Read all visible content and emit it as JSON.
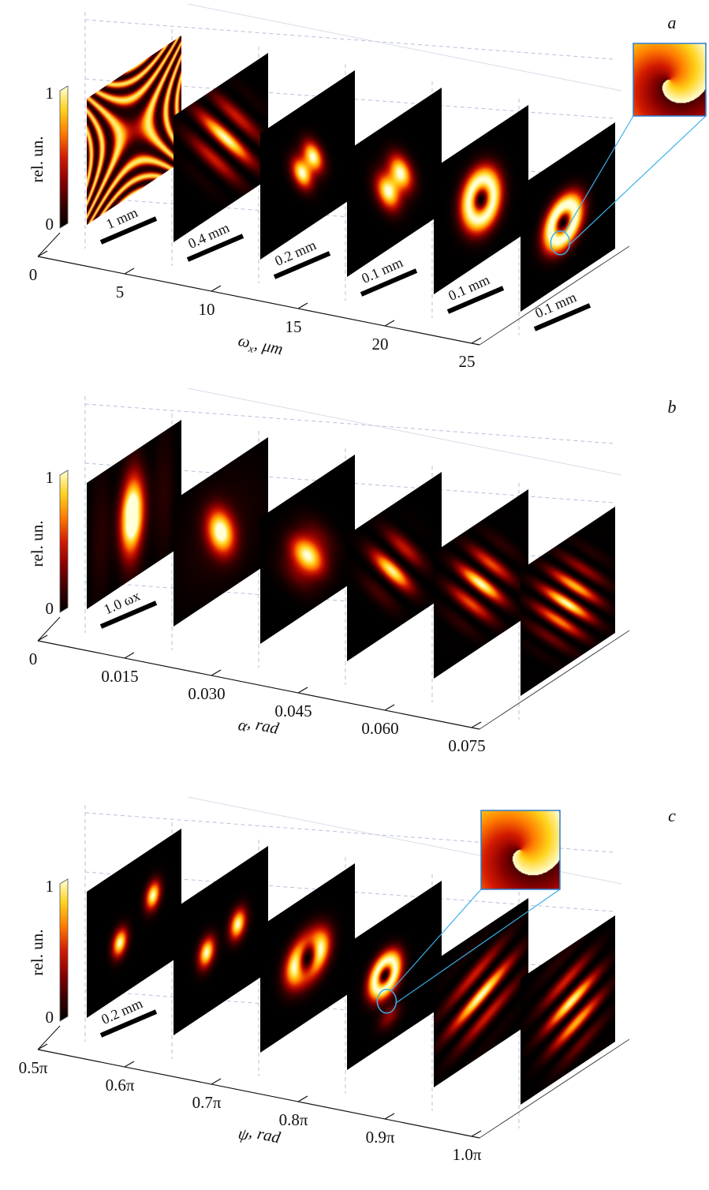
{
  "colors": {
    "colormap": [
      "#000000",
      "#3a0000",
      "#8a0000",
      "#d41a00",
      "#ff7a00",
      "#ffd21a",
      "#ffffd8"
    ],
    "scale_bar": "#000000",
    "grid": "#b8bfd8",
    "inset_frame": "#2a7fd4",
    "inset_lines": "#3ab0e8"
  },
  "panels": [
    {
      "id": "a",
      "panel_label": "a",
      "colorbar": {
        "label": "rel. un.",
        "max_label": "1",
        "min_label": "0"
      },
      "axis": {
        "label_var": "ω",
        "label_sub": "x",
        "label_unit": ", μm",
        "ticks": [
          "0",
          "5",
          "10",
          "15",
          "20",
          "25"
        ]
      },
      "slices": [
        {
          "pattern": "caustic",
          "scale_label": "1 mm"
        },
        {
          "pattern": "fringes3",
          "scale_label": "0.4 mm"
        },
        {
          "pattern": "lobes2",
          "scale_label": "0.2 mm"
        },
        {
          "pattern": "lobes2b",
          "scale_label": "0.1 mm"
        },
        {
          "pattern": "ring",
          "scale_label": "0.1 mm"
        },
        {
          "pattern": "donut",
          "scale_label": "0.1 mm"
        }
      ],
      "inset": {
        "pattern": "spiral-phase",
        "on_slice": 5
      }
    },
    {
      "id": "b",
      "panel_label": "b",
      "colorbar": {
        "label": "rel. un.",
        "max_label": "1",
        "min_label": "0"
      },
      "axis": {
        "label_var": "α",
        "label_sub": "",
        "label_unit": ", rad",
        "ticks": [
          "0",
          "0.015",
          "0.030",
          "0.045",
          "0.060",
          "0.075"
        ]
      },
      "slices": [
        {
          "pattern": "peanut",
          "scale_label": "1.0 ωx"
        },
        {
          "pattern": "spot",
          "scale_label": ""
        },
        {
          "pattern": "spot2",
          "scale_label": ""
        },
        {
          "pattern": "fringes2",
          "scale_label": ""
        },
        {
          "pattern": "fringes3b",
          "scale_label": ""
        },
        {
          "pattern": "fringes4",
          "scale_label": ""
        }
      ],
      "inset": null
    },
    {
      "id": "c",
      "panel_label": "c",
      "colorbar": {
        "label": "rel. un.",
        "max_label": "1",
        "min_label": "0"
      },
      "axis": {
        "label_var": "ψ",
        "label_sub": "",
        "label_unit": ", rad",
        "ticks": [
          "0.5π",
          "0.6π",
          "0.7π",
          "0.8π",
          "0.9π",
          "1.0π"
        ]
      },
      "slices": [
        {
          "pattern": "two-spots-diag",
          "scale_label": "0.2 mm"
        },
        {
          "pattern": "two-spots-flat",
          "scale_label": ""
        },
        {
          "pattern": "four-lobes",
          "scale_label": ""
        },
        {
          "pattern": "donut-c",
          "scale_label": ""
        },
        {
          "pattern": "stripes3",
          "scale_label": ""
        },
        {
          "pattern": "stripes3b",
          "scale_label": ""
        }
      ],
      "inset": {
        "pattern": "spiral-phase",
        "on_slice": 3
      }
    }
  ]
}
